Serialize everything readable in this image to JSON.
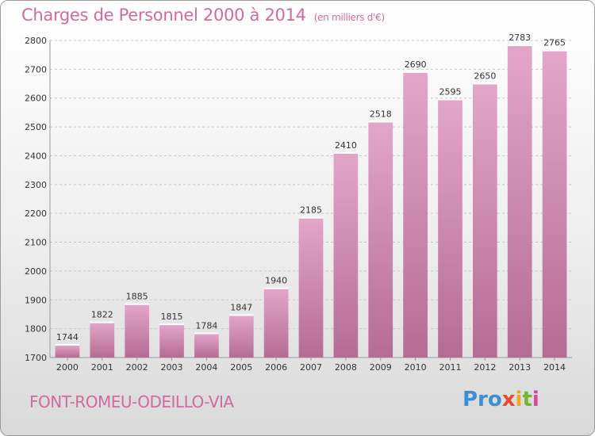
{
  "header": {
    "title": "Charges de Personnel 2000 à 2014",
    "subtitle": "(en milliers d'€)"
  },
  "footer": {
    "commune": "FONT-ROMEU-ODEILLO-VIA",
    "logo": {
      "p1": "Pro",
      "p2": "x",
      "p3": "i",
      "p4": "t",
      "p5": "i"
    }
  },
  "colors": {
    "bar_top": "#e3a6c8",
    "bar_bottom": "#b56c94",
    "accent": "#d16aa0",
    "grid": "#c8c8c8"
  },
  "chart_data": {
    "type": "bar",
    "title": "Charges de Personnel 2000 à 2014",
    "subtitle": "(en milliers d'€)",
    "categories": [
      "2000",
      "2001",
      "2002",
      "2003",
      "2004",
      "2005",
      "2006",
      "2007",
      "2008",
      "2009",
      "2010",
      "2011",
      "2012",
      "2013",
      "2014"
    ],
    "values": [
      1744,
      1822,
      1885,
      1815,
      1784,
      1847,
      1940,
      2185,
      2410,
      2518,
      2690,
      2595,
      2650,
      2783,
      2765
    ],
    "yticks": [
      1700,
      1800,
      1900,
      2000,
      2100,
      2200,
      2300,
      2400,
      2500,
      2600,
      2700,
      2800
    ],
    "ylim": [
      1700,
      2800
    ],
    "grid": true,
    "data_labels": true
  }
}
